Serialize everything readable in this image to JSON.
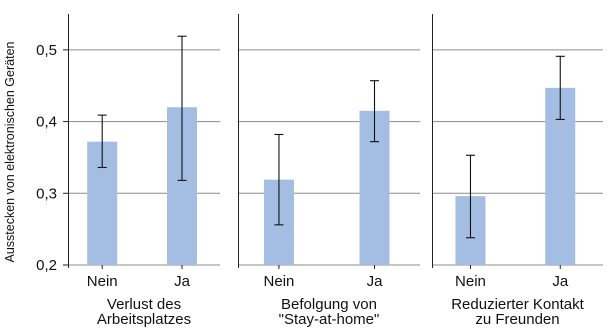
{
  "chart_data": {
    "type": "bar",
    "ylabel": "Ausstecken von elektronischen Geräten",
    "ylim": [
      0.2,
      0.55
    ],
    "yticks": [
      0.2,
      0.3,
      0.4,
      0.5
    ],
    "ytick_labels": [
      "0,2",
      "0,3",
      "0,4",
      "0,5"
    ],
    "grid": true,
    "categories": [
      "Nein",
      "Ja"
    ],
    "panels": [
      {
        "title_lines": [
          "Verlust des",
          "Arbeitsplatzes"
        ],
        "values": [
          0.372,
          0.42
        ],
        "ci_low": [
          0.336,
          0.318
        ],
        "ci_high": [
          0.409,
          0.519
        ]
      },
      {
        "title_lines": [
          "Befolgung von",
          "\"Stay-at-home\""
        ],
        "values": [
          0.319,
          0.415
        ],
        "ci_low": [
          0.256,
          0.372
        ],
        "ci_high": [
          0.382,
          0.457
        ]
      },
      {
        "title_lines": [
          "Reduzierter Kontakt",
          "zu Freunden"
        ],
        "values": [
          0.296,
          0.447
        ],
        "ci_low": [
          0.238,
          0.403
        ],
        "ci_high": [
          0.353,
          0.491
        ]
      }
    ],
    "colors": {
      "bar": "#a4bde3",
      "grid": "#8c8c8c",
      "error_bar": "#111111"
    }
  }
}
